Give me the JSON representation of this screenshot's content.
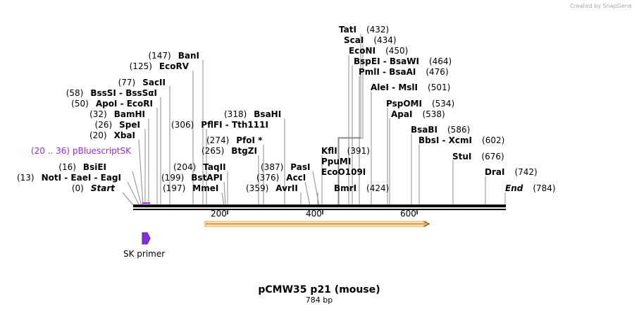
{
  "credit": "Created by SnapGene",
  "title": "pCMW35 p21 (mouse)",
  "length_label": "784 bp",
  "length_bp": 784,
  "ticks": [
    "200",
    "400",
    "600"
  ],
  "primer_label": "SK primer",
  "feature_label": "(20 .. 36)  pBluescriptSK",
  "colors": {
    "feature": "#9b30d9",
    "orf": "#e8a33b",
    "primer": "#8a2be2"
  },
  "sites": [
    {
      "id": "tati",
      "name": "TatI",
      "pos": "(432)",
      "bp": 432
    },
    {
      "id": "scai",
      "name": "ScaI",
      "pos": "(434)",
      "bp": 434
    },
    {
      "id": "econi",
      "name": "EcoNI",
      "pos": "(450)",
      "bp": 450
    },
    {
      "id": "bspei",
      "name": "BspEI  -  BsaWI",
      "pos": "(464)",
      "bp": 464
    },
    {
      "id": "pmli",
      "name": "PmlI  -  BsaAI",
      "pos": "(476)",
      "bp": 476
    },
    {
      "id": "alei",
      "name": "AleI  -  MslI",
      "pos": "(501)",
      "bp": 501
    },
    {
      "id": "pspomi",
      "name": "PspOMI",
      "pos": "(534)",
      "bp": 534
    },
    {
      "id": "apai",
      "name": "ApaI",
      "pos": "(538)",
      "bp": 538
    },
    {
      "id": "bsabi",
      "name": "BsaBI",
      "pos": "(586)",
      "bp": 586
    },
    {
      "id": "bbsi",
      "name": "BbsI  -  XcmI",
      "pos": "(602)",
      "bp": 602
    },
    {
      "id": "stui",
      "name": "StuI",
      "pos": "(676)",
      "bp": 676
    },
    {
      "id": "drai",
      "name": "DraI",
      "pos": "(742)",
      "bp": 742
    },
    {
      "id": "end",
      "name": "End",
      "pos": "(784)",
      "bp": 784
    },
    {
      "id": "bani",
      "name": "BanI",
      "pos": "(147)",
      "bp": 147
    },
    {
      "id": "ecorv",
      "name": "EcoRV",
      "pos": "(125)",
      "bp": 125
    },
    {
      "id": "sacii",
      "name": "SacII",
      "pos": "(77)",
      "bp": 77
    },
    {
      "id": "bssi",
      "name": "BssSI  -  BssSαI",
      "pos": "(58)",
      "bp": 58
    },
    {
      "id": "apoi",
      "name": "ApoI  -  EcoRI",
      "pos": "(50)",
      "bp": 50
    },
    {
      "id": "bamhi",
      "name": "BamHI",
      "pos": "(32)",
      "bp": 32
    },
    {
      "id": "spei",
      "name": "SpeI",
      "pos": "(26)",
      "bp": 26
    },
    {
      "id": "xbai",
      "name": "XbaI",
      "pos": "(20)",
      "bp": 20
    },
    {
      "id": "bsiei",
      "name": "BsiEI",
      "pos": "(16)",
      "bp": 16
    },
    {
      "id": "noti",
      "name": "NotI  -  EaeI  -  EagI",
      "pos": "(13)",
      "bp": 13
    },
    {
      "id": "start",
      "name": "Start",
      "pos": "(0)",
      "bp": 0
    },
    {
      "id": "pflfi",
      "name": "PflFI  -  Tth111I",
      "pos": "(306)",
      "bp": 306
    },
    {
      "id": "bsahi",
      "name": "BsaHI",
      "pos": "(318)",
      "bp": 318
    },
    {
      "id": "pfoi",
      "name": "PfoI *",
      "pos": "(274)",
      "bp": 274
    },
    {
      "id": "btgzi",
      "name": "BtgZI",
      "pos": "(265)",
      "bp": 265
    },
    {
      "id": "taqii",
      "name": "TaqII",
      "pos": "(204)",
      "bp": 204
    },
    {
      "id": "bstapi",
      "name": "BstAPI",
      "pos": "(199)",
      "bp": 199
    },
    {
      "id": "mmei",
      "name": "MmeI",
      "pos": "(197)",
      "bp": 197
    },
    {
      "id": "pasi",
      "name": "PasI",
      "pos": "(387)",
      "bp": 387
    },
    {
      "id": "acci",
      "name": "AccI",
      "pos": "(376)",
      "bp": 376
    },
    {
      "id": "avrii",
      "name": "AvrII",
      "pos": "(359)",
      "bp": 359
    },
    {
      "id": "kfli",
      "name": "KflI",
      "pos": "(391)",
      "bp": 391
    },
    {
      "id": "ppumi",
      "name": "PpuMI",
      "pos": "",
      "bp": 391
    },
    {
      "id": "eco0109i",
      "name": "EcoO109I",
      "pos": "",
      "bp": 391
    },
    {
      "id": "bmri",
      "name": "BmrI",
      "pos": "(424)",
      "bp": 424
    }
  ]
}
